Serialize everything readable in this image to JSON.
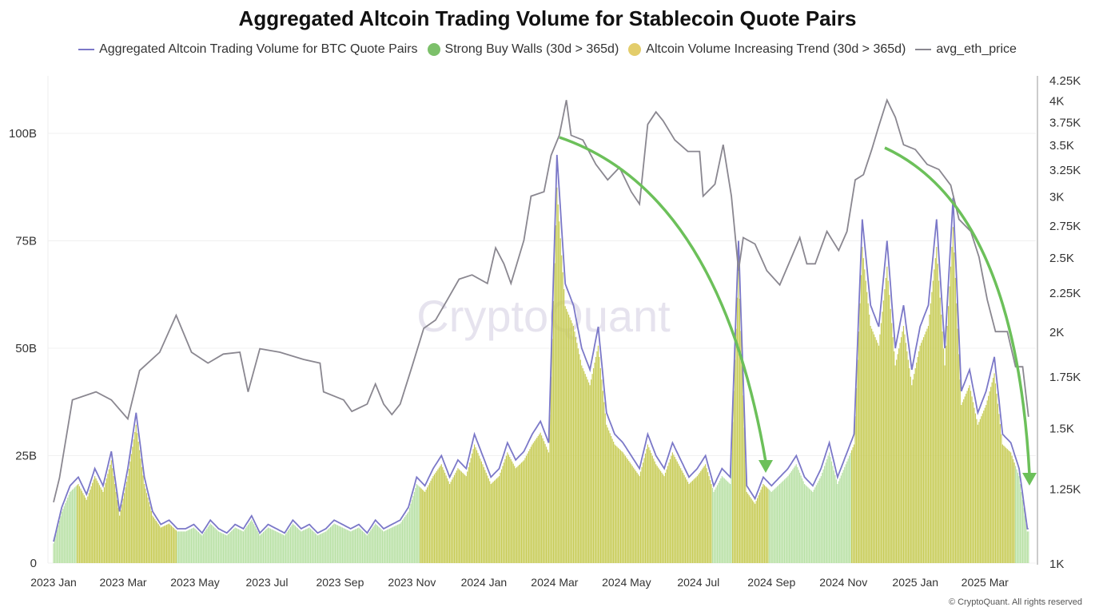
{
  "chart_data": {
    "type": "bar+line",
    "title": "Aggregated Altcoin Trading Volume for Stablecoin Quote Pairs",
    "legend": [
      {
        "name": "Aggregated Altcoin Trading Volume for BTC Quote Pairs",
        "color": "#7b78c8",
        "marker": "line"
      },
      {
        "name": "Strong Buy Walls (30d > 365d)",
        "color": "#7cc06a",
        "marker": "dot"
      },
      {
        "name": "Altcoin Volume Increasing Trend (30d > 365d)",
        "color": "#e3cd6b",
        "marker": "dot"
      },
      {
        "name": "avg_eth_price",
        "color": "#8a8790",
        "marker": "line"
      }
    ],
    "legend_position": "top",
    "grid": true,
    "x_ticks": [
      "2023 Jan",
      "2023 Mar",
      "2023 May",
      "2023 Jul",
      "2023 Sep",
      "2023 Nov",
      "2024 Jan",
      "2024 Mar",
      "2024 May",
      "2024 Jul",
      "2024 Sep",
      "2024 Nov",
      "2025 Jan",
      "2025 Mar"
    ],
    "x_range": [
      "2023-01-01",
      "2025-04-07"
    ],
    "y_left": {
      "ticks": [
        "0",
        "25B",
        "50B",
        "75B",
        "100B"
      ],
      "tick_values": [
        0,
        25,
        50,
        75,
        100
      ],
      "unit": "B",
      "range": [
        0,
        113
      ]
    },
    "y_right": {
      "ticks": [
        "1K",
        "1.25K",
        "1.5K",
        "1.75K",
        "2K",
        "2.25K",
        "2.5K",
        "2.75K",
        "3K",
        "3.25K",
        "3.5K",
        "3.75K",
        "4K",
        "4.25K"
      ],
      "tick_values": [
        1000,
        1250,
        1500,
        1750,
        2000,
        2250,
        2500,
        2750,
        3000,
        3250,
        3500,
        3750,
        4000,
        4250
      ],
      "scale": "log",
      "range": [
        1000,
        4250
      ]
    },
    "volume_series": {
      "name": "Aggregated Altcoin Trading Volume for BTC Quote Pairs",
      "start": "2023-01-01",
      "frequency": "weekly",
      "unit": "B",
      "values": [
        5,
        13,
        18,
        20,
        16,
        22,
        18,
        26,
        12,
        22,
        35,
        20,
        12,
        9,
        10,
        8,
        8,
        9,
        7,
        10,
        8,
        7,
        9,
        8,
        11,
        7,
        9,
        8,
        7,
        10,
        8,
        9,
        7,
        8,
        10,
        9,
        8,
        9,
        7,
        10,
        8,
        9,
        10,
        13,
        20,
        18,
        22,
        25,
        20,
        24,
        22,
        30,
        25,
        20,
        22,
        28,
        24,
        26,
        30,
        33,
        28,
        95,
        65,
        60,
        50,
        45,
        55,
        35,
        30,
        28,
        25,
        22,
        30,
        25,
        22,
        28,
        24,
        20,
        22,
        25,
        18,
        22,
        20,
        75,
        18,
        15,
        20,
        18,
        20,
        22,
        25,
        20,
        18,
        22,
        28,
        20,
        25,
        30,
        80,
        60,
        55,
        75,
        50,
        60,
        45,
        55,
        60,
        80,
        50,
        85,
        40,
        45,
        35,
        40,
        48,
        30,
        28,
        22,
        8
      ]
    },
    "regimes": [
      {
        "from": "2023-01-01",
        "to": "2023-01-21",
        "state": "Strong Buy Walls (30d > 365d)"
      },
      {
        "from": "2023-01-21",
        "to": "2023-04-16",
        "state": "Altcoin Volume Increasing Trend (30d > 365d)"
      },
      {
        "from": "2023-04-16",
        "to": "2023-11-08",
        "state": "Strong Buy Walls (30d > 365d)"
      },
      {
        "from": "2023-11-08",
        "to": "2024-07-13",
        "state": "Altcoin Volume Increasing Trend (30d > 365d)"
      },
      {
        "from": "2024-07-13",
        "to": "2024-07-30",
        "state": "Strong Buy Walls (30d > 365d)"
      },
      {
        "from": "2024-07-30",
        "to": "2024-08-30",
        "state": "Altcoin Volume Increasing Trend (30d > 365d)"
      },
      {
        "from": "2024-08-30",
        "to": "2024-11-08",
        "state": "Strong Buy Walls (30d > 365d)"
      },
      {
        "from": "2024-11-08",
        "to": "2025-03-27",
        "state": "Altcoin Volume Increasing Trend (30d > 365d)"
      },
      {
        "from": "2025-03-27",
        "to": "2025-04-07",
        "state": "Strong Buy Walls (30d > 365d)"
      }
    ],
    "price_series": {
      "name": "avg_eth_price",
      "points": [
        [
          "2023-01-01",
          1200
        ],
        [
          "2023-01-06",
          1290
        ],
        [
          "2023-01-17",
          1630
        ],
        [
          "2023-02-06",
          1670
        ],
        [
          "2023-02-19",
          1630
        ],
        [
          "2023-03-05",
          1540
        ],
        [
          "2023-03-15",
          1780
        ],
        [
          "2023-04-01",
          1880
        ],
        [
          "2023-04-15",
          2100
        ],
        [
          "2023-04-28",
          1880
        ],
        [
          "2023-05-12",
          1820
        ],
        [
          "2023-05-25",
          1870
        ],
        [
          "2023-06-08",
          1880
        ],
        [
          "2023-06-15",
          1670
        ],
        [
          "2023-06-25",
          1900
        ],
        [
          "2023-07-12",
          1880
        ],
        [
          "2023-08-01",
          1840
        ],
        [
          "2023-08-15",
          1820
        ],
        [
          "2023-08-18",
          1670
        ],
        [
          "2023-09-04",
          1630
        ],
        [
          "2023-09-11",
          1575
        ],
        [
          "2023-09-24",
          1610
        ],
        [
          "2023-10-01",
          1710
        ],
        [
          "2023-10-08",
          1610
        ],
        [
          "2023-10-15",
          1560
        ],
        [
          "2023-10-22",
          1610
        ],
        [
          "2023-11-01",
          1800
        ],
        [
          "2023-11-11",
          2020
        ],
        [
          "2023-11-21",
          2070
        ],
        [
          "2023-12-01",
          2200
        ],
        [
          "2023-12-11",
          2340
        ],
        [
          "2023-12-22",
          2370
        ],
        [
          "2024-01-04",
          2310
        ],
        [
          "2024-01-11",
          2570
        ],
        [
          "2024-01-18",
          2450
        ],
        [
          "2024-01-24",
          2310
        ],
        [
          "2024-02-04",
          2630
        ],
        [
          "2024-02-10",
          3000
        ],
        [
          "2024-02-21",
          3040
        ],
        [
          "2024-02-27",
          3390
        ],
        [
          "2024-03-05",
          3600
        ],
        [
          "2024-03-11",
          4000
        ],
        [
          "2024-03-15",
          3600
        ],
        [
          "2024-03-25",
          3550
        ],
        [
          "2024-04-05",
          3300
        ],
        [
          "2024-04-15",
          3150
        ],
        [
          "2024-04-25",
          3270
        ],
        [
          "2024-05-05",
          3040
        ],
        [
          "2024-05-12",
          2930
        ],
        [
          "2024-05-19",
          3720
        ],
        [
          "2024-05-26",
          3860
        ],
        [
          "2024-06-01",
          3760
        ],
        [
          "2024-06-11",
          3550
        ],
        [
          "2024-06-22",
          3430
        ],
        [
          "2024-07-02",
          3430
        ],
        [
          "2024-07-05",
          3000
        ],
        [
          "2024-07-15",
          3110
        ],
        [
          "2024-07-22",
          3500
        ],
        [
          "2024-07-29",
          3000
        ],
        [
          "2024-08-04",
          2400
        ],
        [
          "2024-08-08",
          2650
        ],
        [
          "2024-08-18",
          2600
        ],
        [
          "2024-08-28",
          2400
        ],
        [
          "2024-09-08",
          2300
        ],
        [
          "2024-09-18",
          2500
        ],
        [
          "2024-09-25",
          2650
        ],
        [
          "2024-10-01",
          2450
        ],
        [
          "2024-10-08",
          2450
        ],
        [
          "2024-10-18",
          2700
        ],
        [
          "2024-10-28",
          2550
        ],
        [
          "2024-11-04",
          2700
        ],
        [
          "2024-11-11",
          3150
        ],
        [
          "2024-11-18",
          3200
        ],
        [
          "2024-11-25",
          3450
        ],
        [
          "2024-12-01",
          3700
        ],
        [
          "2024-12-08",
          4000
        ],
        [
          "2024-12-15",
          3800
        ],
        [
          "2024-12-22",
          3500
        ],
        [
          "2025-01-01",
          3450
        ],
        [
          "2025-01-11",
          3300
        ],
        [
          "2025-01-21",
          3250
        ],
        [
          "2025-01-31",
          3100
        ],
        [
          "2025-02-07",
          2800
        ],
        [
          "2025-02-17",
          2700
        ],
        [
          "2025-02-24",
          2500
        ],
        [
          "2025-03-03",
          2200
        ],
        [
          "2025-03-10",
          2000
        ],
        [
          "2025-03-20",
          2000
        ],
        [
          "2025-03-27",
          1800
        ],
        [
          "2025-04-02",
          1800
        ],
        [
          "2025-04-07",
          1550
        ]
      ]
    },
    "watermark": "CryptoQuant",
    "copyright": "© CryptoQuant. All rights reserved"
  }
}
